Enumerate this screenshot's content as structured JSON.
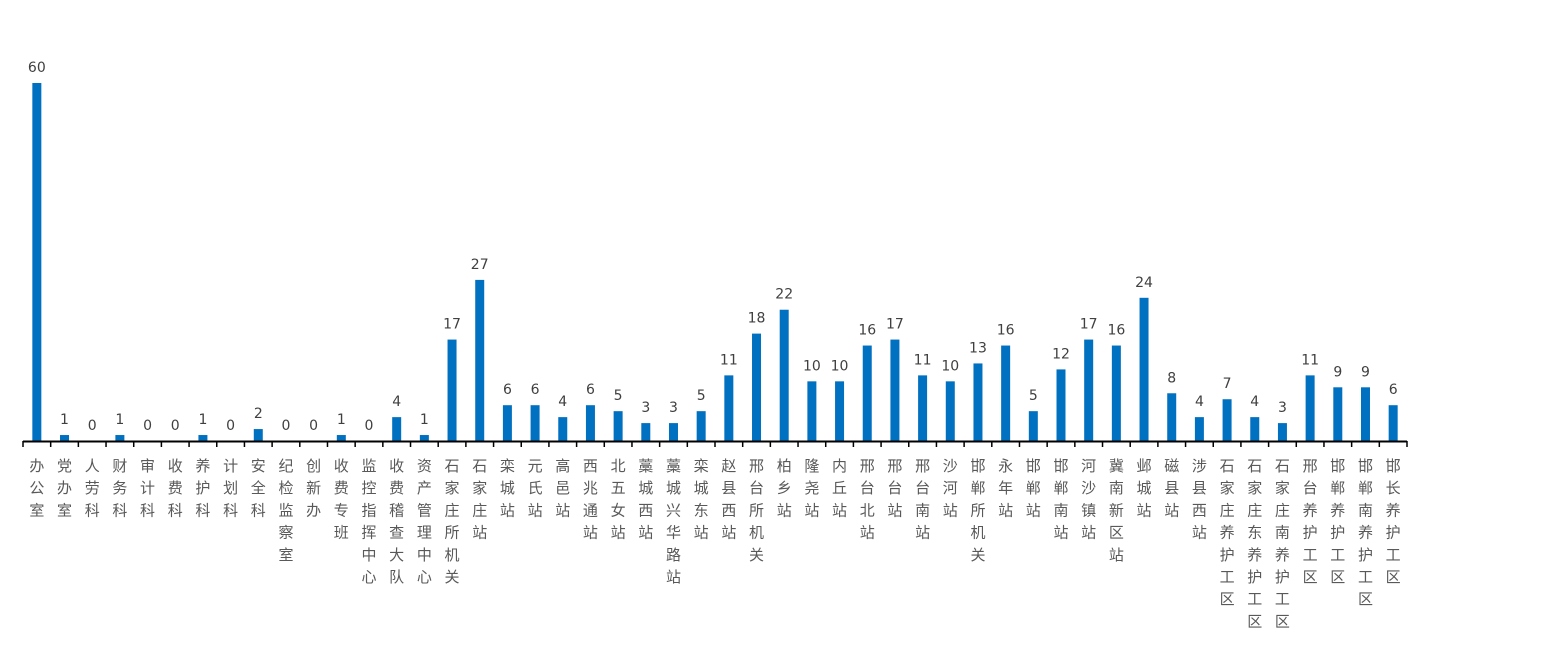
{
  "chart_data": {
    "type": "bar",
    "categories": [
      "办公室",
      "党办室",
      "人劳科",
      "财务科",
      "审计科",
      "收费科",
      "养护科",
      "计划科",
      "安全科",
      "纪检监察室",
      "创新办",
      "收费专班",
      "监控指挥中心",
      "收费稽查大队",
      "资产管理中心",
      "石家庄所机关",
      "石家庄站",
      "栾城站",
      "元氏站",
      "高邑站",
      "西兆通站",
      "北五女站",
      "藁城西站",
      "藁城兴华路站",
      "栾城东站",
      "赵县西站",
      "邢台所机关",
      "柏乡站",
      "隆尧站",
      "内丘站",
      "邢台北站",
      "邢台站",
      "邢台南站",
      "沙河站",
      "邯郸所机关",
      "永年站",
      "邯郸站",
      "邯郸南站",
      "河沙镇站",
      "冀南新区站",
      "邺城站",
      "磁县站",
      "涉县西站",
      "石家庄养护工区",
      "石家庄东养护工区",
      "石家庄南养护工区",
      "邢台养护工区",
      "邯郸养护工区",
      "邯郸南养护工区",
      "邯长养护工区"
    ],
    "values": [
      60,
      1,
      0,
      1,
      0,
      0,
      1,
      0,
      2,
      0,
      0,
      1,
      0,
      4,
      1,
      17,
      27,
      6,
      6,
      4,
      6,
      5,
      3,
      3,
      5,
      11,
      18,
      22,
      10,
      10,
      16,
      17,
      11,
      10,
      13,
      16,
      5,
      12,
      17,
      16,
      24,
      8,
      4,
      7,
      4,
      3,
      11,
      9,
      9,
      6
    ],
    "ylim": [
      0,
      60
    ],
    "color": "#0070C0",
    "axis_color": "#000000",
    "grid": false,
    "data_labels": true,
    "title": "",
    "xlabel": "",
    "ylabel": ""
  }
}
